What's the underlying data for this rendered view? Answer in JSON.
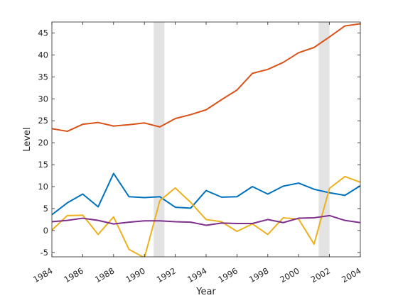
{
  "chart_data": {
    "type": "line",
    "title": "",
    "xlabel": "Year",
    "ylabel": "Level",
    "xlim": [
      1984,
      2004
    ],
    "ylim": [
      -6,
      47.5
    ],
    "xticks": [
      1984,
      1986,
      1988,
      1990,
      1992,
      1994,
      1996,
      1998,
      2000,
      2002,
      2004
    ],
    "yticks": [
      -5,
      0,
      5,
      10,
      15,
      20,
      25,
      30,
      35,
      40,
      45
    ],
    "grid": false,
    "legend": "none",
    "shaded_periods": [
      [
        1990.6,
        1991.3
      ],
      [
        2001.3,
        2002.0
      ]
    ],
    "shade_color": "#e3e3e3",
    "x": [
      1984,
      1985,
      1986,
      1987,
      1988,
      1989,
      1990,
      1991,
      1992,
      1993,
      1994,
      1995,
      1996,
      1997,
      1998,
      1999,
      2000,
      2001,
      2002,
      2003,
      2004
    ],
    "series": [
      {
        "color": "#0072bd",
        "values": [
          3.6,
          6.3,
          8.3,
          5.4,
          13.0,
          7.7,
          7.5,
          7.7,
          5.3,
          5.1,
          9.1,
          7.6,
          7.7,
          10.0,
          8.3,
          10.1,
          10.8,
          9.4,
          8.6,
          8.0,
          10.2
        ]
      },
      {
        "color": "#d95319",
        "values": [
          23.2,
          22.6,
          24.2,
          24.6,
          23.8,
          24.1,
          24.5,
          23.6,
          25.5,
          26.4,
          27.5,
          29.8,
          32.0,
          35.8,
          36.7,
          38.3,
          40.5,
          41.7,
          44.1,
          46.6,
          47.1
        ]
      },
      {
        "color": "#edb120",
        "values": [
          0.1,
          3.4,
          3.5,
          -0.9,
          3.1,
          -4.3,
          -6.2,
          6.8,
          9.7,
          6.4,
          2.5,
          2.0,
          -0.2,
          1.5,
          -0.9,
          2.9,
          2.6,
          -3.1,
          9.6,
          12.3,
          11.0
        ]
      },
      {
        "color": "#7e2f8e",
        "values": [
          2.0,
          2.3,
          2.8,
          2.3,
          1.5,
          1.9,
          2.2,
          2.2,
          2.0,
          1.9,
          1.2,
          1.7,
          1.6,
          1.6,
          2.5,
          1.8,
          2.8,
          2.9,
          3.4,
          2.3,
          1.8
        ]
      }
    ]
  }
}
